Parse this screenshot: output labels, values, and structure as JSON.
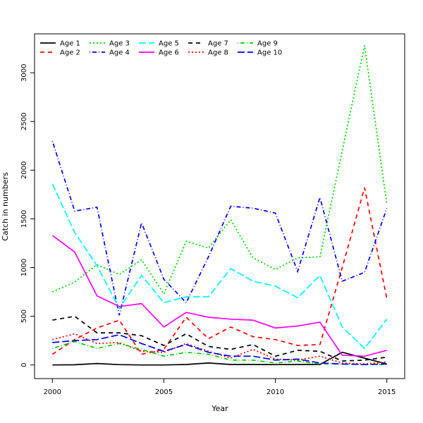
{
  "chart_data": {
    "type": "line",
    "title": "",
    "xlabel": "Year",
    "ylabel": "Catch in numbers",
    "xlim": [
      1999.2,
      2015.8
    ],
    "ylim": [
      -140,
      3400
    ],
    "xticks": [
      2000,
      2005,
      2010,
      2015
    ],
    "yticks": [
      0,
      500,
      1000,
      1500,
      2000,
      2500,
      3000
    ],
    "grid": false,
    "legend_position": "top-left",
    "x": [
      2000,
      2001,
      2002,
      2003,
      2004,
      2005,
      2006,
      2007,
      2008,
      2009,
      2010,
      2011,
      2012,
      2013,
      2014,
      2015
    ],
    "series": [
      {
        "name": "Age 1",
        "color": "#000000",
        "dash": "solid",
        "values": [
          0,
          2,
          15,
          3,
          0,
          0,
          5,
          20,
          5,
          5,
          3,
          5,
          5,
          130,
          70,
          10
        ]
      },
      {
        "name": "Age 2",
        "color": "#ff0000",
        "dash": "dashed",
        "values": [
          110,
          260,
          380,
          460,
          110,
          160,
          490,
          270,
          390,
          290,
          260,
          200,
          210,
          1000,
          1820,
          680
        ]
      },
      {
        "name": "Age 3",
        "color": "#00cd00",
        "dash": "dotted",
        "values": [
          750,
          850,
          1030,
          930,
          1080,
          730,
          1270,
          1200,
          1490,
          1100,
          980,
          1100,
          1110,
          2200,
          3280,
          1650
        ]
      },
      {
        "name": "Age 4",
        "color": "#0000ff",
        "dash": "dotdash",
        "values": [
          2300,
          1580,
          1620,
          510,
          1460,
          880,
          640,
          1110,
          1630,
          1610,
          1560,
          960,
          1720,
          860,
          950,
          1610
        ]
      },
      {
        "name": "Age 5",
        "color": "#00ffff",
        "dash": "longdash",
        "values": [
          1860,
          1360,
          1020,
          580,
          920,
          640,
          700,
          700,
          990,
          860,
          810,
          690,
          920,
          390,
          170,
          470
        ]
      },
      {
        "name": "Age 6",
        "color": "#ff00ff",
        "dash": "solid",
        "values": [
          1330,
          1160,
          710,
          600,
          630,
          390,
          540,
          490,
          470,
          460,
          380,
          400,
          440,
          100,
          90,
          150
        ]
      },
      {
        "name": "Age 7",
        "color": "#000000",
        "dash": "dashed",
        "values": [
          460,
          500,
          330,
          330,
          300,
          200,
          320,
          190,
          160,
          210,
          90,
          150,
          140,
          40,
          50,
          80
        ]
      },
      {
        "name": "Age 8",
        "color": "#ff0000",
        "dash": "dotted",
        "values": [
          260,
          320,
          220,
          230,
          140,
          130,
          220,
          140,
          70,
          160,
          60,
          50,
          90,
          20,
          10,
          30
        ]
      },
      {
        "name": "Age 9",
        "color": "#00cd00",
        "dash": "dotdash",
        "values": [
          170,
          240,
          170,
          220,
          160,
          90,
          130,
          110,
          50,
          50,
          20,
          40,
          10,
          10,
          5,
          5
        ]
      },
      {
        "name": "Age 10",
        "color": "#0000ff",
        "dash": "longdash",
        "values": [
          230,
          250,
          260,
          310,
          220,
          140,
          210,
          130,
          90,
          90,
          50,
          60,
          20,
          10,
          5,
          10
        ]
      }
    ]
  }
}
